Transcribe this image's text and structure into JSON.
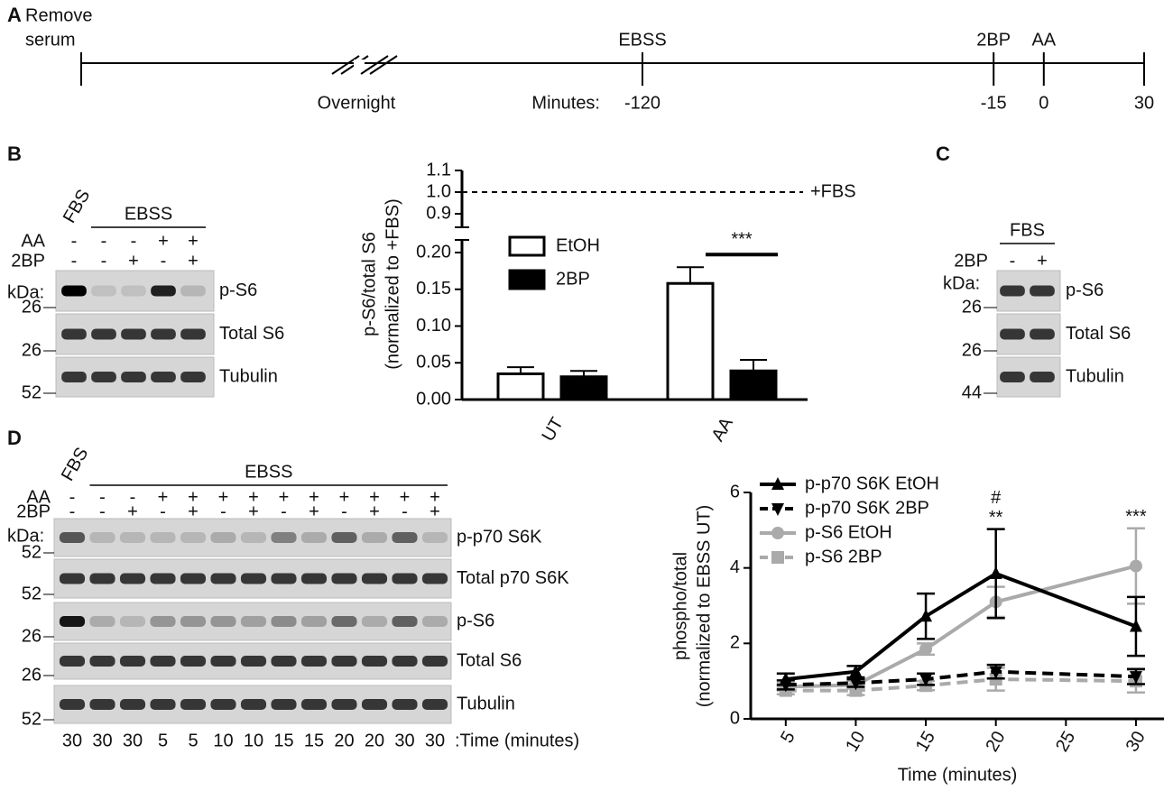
{
  "panel_labels": [
    "A",
    "B",
    "C",
    "D"
  ],
  "timeline": {
    "start_label": [
      "Remove",
      "serum"
    ],
    "break_label": "Overnight",
    "minutes_label": "Minutes:",
    "event_labels": [
      "EBSS",
      "2BP",
      "AA"
    ],
    "ticks": [
      -120,
      -15,
      0,
      30
    ]
  },
  "blot_b": {
    "top": "FBS",
    "group": "EBSS",
    "sign_rows": [
      {
        "label": "AA",
        "signs": [
          "-",
          "-",
          "-",
          "+",
          "+"
        ]
      },
      {
        "label": "2BP",
        "signs": [
          "-",
          "-",
          "+",
          "-",
          "+"
        ]
      }
    ],
    "kda": "kDa:",
    "rows": [
      {
        "label": "p-S6",
        "marker": "26"
      },
      {
        "label": "Total S6",
        "marker": "26"
      },
      {
        "label": "Tubulin",
        "marker": "52"
      }
    ]
  },
  "blot_c": {
    "group": "FBS",
    "sign_rows": [
      {
        "label": "2BP",
        "signs": [
          "-",
          "+"
        ]
      }
    ],
    "kda": "kDa:",
    "rows": [
      {
        "label": "p-S6",
        "marker": "26"
      },
      {
        "label": "Total S6",
        "marker": "26"
      },
      {
        "label": "Tubulin",
        "marker": "44"
      }
    ]
  },
  "blot_d": {
    "top": "FBS",
    "group": "EBSS",
    "sign_rows": [
      {
        "label": "AA",
        "signs": [
          "-",
          "-",
          "-",
          "+",
          "+",
          "+",
          "+",
          "+",
          "+",
          "+",
          "+",
          "+",
          "+"
        ]
      },
      {
        "label": "2BP",
        "signs": [
          "-",
          "-",
          "+",
          "-",
          "+",
          "-",
          "+",
          "-",
          "+",
          "-",
          "+",
          "-",
          "+"
        ]
      }
    ],
    "kda": "kDa:",
    "rows": [
      {
        "label": "p-p70 S6K",
        "marker": "52"
      },
      {
        "label": "Total p70 S6K",
        "marker": "52"
      },
      {
        "label": "p-S6",
        "marker": "26"
      },
      {
        "label": "Total S6",
        "marker": "26"
      },
      {
        "label": "Tubulin",
        "marker": "52"
      }
    ],
    "times": [
      30,
      30,
      30,
      5,
      5,
      10,
      10,
      15,
      15,
      20,
      20,
      30,
      30
    ],
    "time_label": ":Time (minutes)"
  },
  "chart_data": [
    {
      "type": "bar",
      "y_label": [
        "p-S6/total S6",
        "(normalized to +FBS)"
      ],
      "categories": [
        "UT",
        "AA"
      ],
      "series": [
        {
          "name": "EtOH",
          "color": "#ffffff",
          "values": [
            0.035,
            0.158
          ],
          "error": [
            0.009,
            0.022
          ]
        },
        {
          "name": "2BP",
          "color": "#000000",
          "values": [
            0.031,
            0.039
          ],
          "error": [
            0.008,
            0.015
          ]
        }
      ],
      "ylim": [
        0,
        0.2
      ],
      "yticks": [
        {
          "value": 0,
          "label": "0.00"
        },
        0.05,
        {
          "value": 0.1,
          "label": "0.10"
        },
        0.15,
        {
          "value": 0.2,
          "label": "0.20"
        }
      ],
      "ylim_top": [
        0.9,
        1.1
      ],
      "yticks_top": [
        0.9,
        {
          "value": 1.0,
          "label": "1.0"
        },
        1.1
      ],
      "reference_line": {
        "value": 1.0,
        "label": "+FBS"
      },
      "annotations": [
        {
          "text": "***",
          "category": "AA"
        }
      ],
      "legend": "upper left"
    },
    {
      "type": "line",
      "x_label": "Time (minutes)",
      "y_label": [
        "phospho/total",
        "(normalized to EBSS UT)"
      ],
      "x": [
        5,
        10,
        15,
        20,
        30
      ],
      "series": [
        {
          "name": "p-p70 S6K EtOH",
          "color": "#000000",
          "marker": "triangle-up",
          "dashed": false,
          "values": [
            1.05,
            1.25,
            2.72,
            3.85,
            2.45
          ],
          "error": [
            0.15,
            0.15,
            0.6,
            1.18,
            0.78
          ]
        },
        {
          "name": "p-p70 S6K 2BP",
          "color": "#000000",
          "marker": "triangle-down",
          "dashed": true,
          "values": [
            0.9,
            0.95,
            1.05,
            1.25,
            1.12
          ],
          "error": [
            0.12,
            0.1,
            0.15,
            0.18,
            0.2
          ]
        },
        {
          "name": "p-S6 EtOH",
          "color": "#aaaaaa",
          "marker": "circle",
          "dashed": false,
          "values": [
            0.85,
            0.9,
            1.85,
            3.1,
            4.05
          ],
          "error": [
            0.1,
            0.1,
            0.15,
            0.4,
            1.0
          ]
        },
        {
          "name": "p-S6 2BP",
          "color": "#aaaaaa",
          "marker": "square",
          "dashed": true,
          "values": [
            0.75,
            0.75,
            0.88,
            1.05,
            1.0
          ],
          "error": [
            0.1,
            0.12,
            0.12,
            0.3,
            0.3
          ]
        }
      ],
      "xlim": [
        2.5,
        32
      ],
      "xticks": [
        5,
        10,
        15,
        20,
        25,
        30
      ],
      "ylim": [
        0,
        6
      ],
      "yticks": [
        0,
        2,
        4,
        6
      ],
      "annotations": [
        {
          "text": "#",
          "x": 20
        },
        {
          "text": "**",
          "x": 20
        },
        {
          "text": "***",
          "x": 30
        }
      ],
      "legend": "upper left"
    }
  ]
}
